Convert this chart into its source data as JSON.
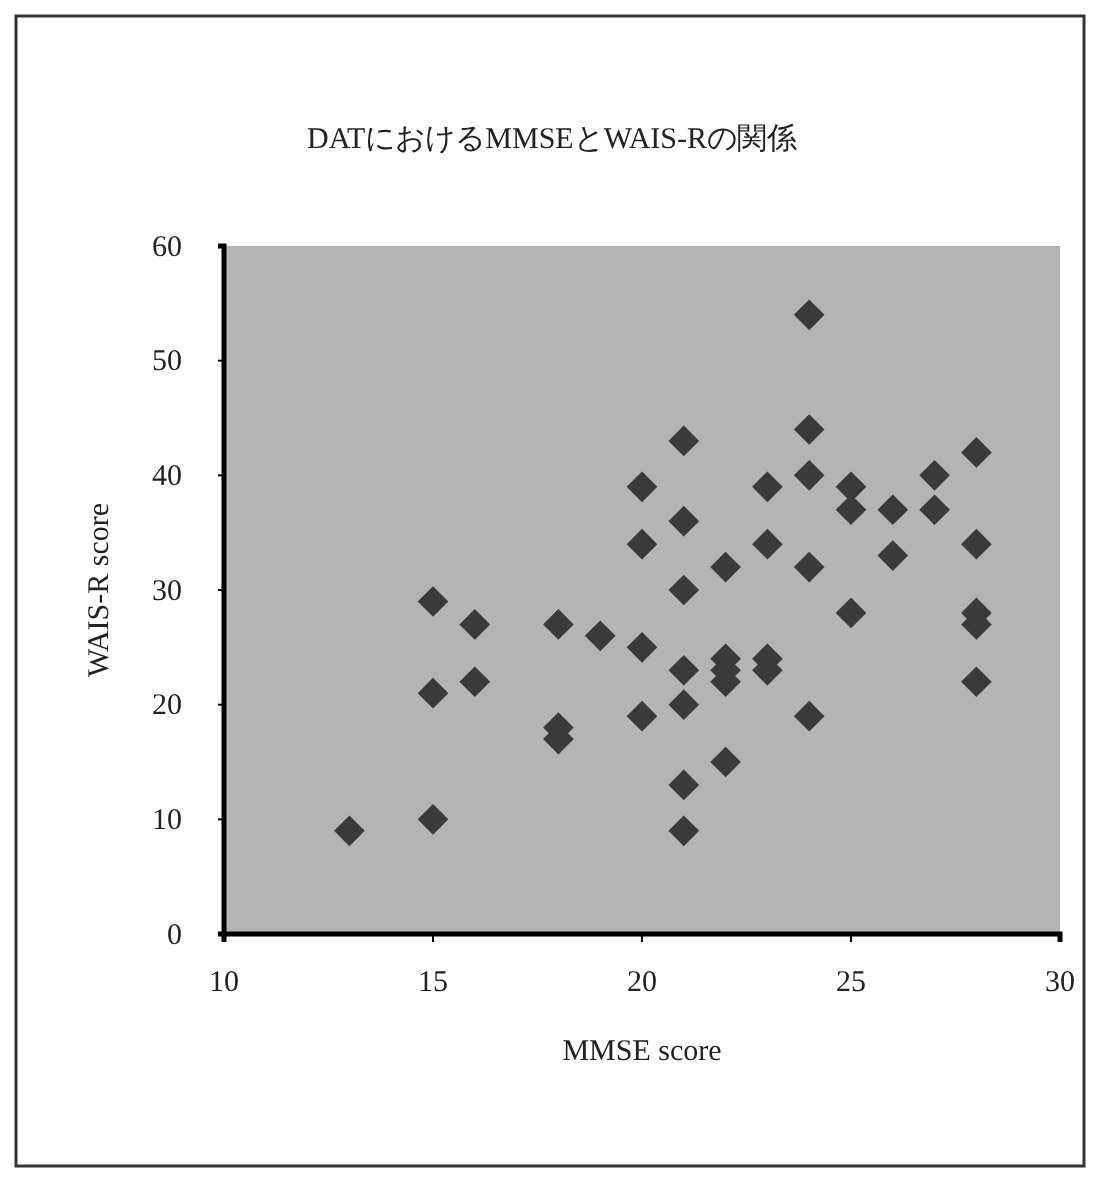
{
  "chart_data": {
    "type": "scatter",
    "title": "DATにおけるMMSEとWAIS-Rの関係",
    "xlabel": "MMSE score",
    "ylabel": "WAIS-R score",
    "xlim": [
      10,
      30
    ],
    "xticks": [
      10,
      15,
      20,
      25,
      30
    ],
    "ylim": [
      0,
      60
    ],
    "yticks": [
      0,
      10,
      20,
      30,
      40,
      50,
      60
    ],
    "grid": false,
    "marker": "diamond",
    "series": [
      {
        "color": "#3a3a3a",
        "x": [
          13,
          15,
          15,
          15,
          16,
          16,
          18,
          18,
          18,
          19,
          20,
          20,
          20,
          20,
          21,
          21,
          21,
          21,
          21,
          21,
          21,
          22,
          22,
          22,
          22,
          22,
          23,
          23,
          23,
          23,
          24,
          24,
          24,
          24,
          24,
          25,
          25,
          25,
          26,
          26,
          27,
          27,
          28,
          28,
          28,
          28,
          28
        ],
        "values": [
          9,
          29,
          21,
          10,
          27,
          22,
          27,
          18,
          17,
          26,
          39,
          34,
          25,
          19,
          43,
          36,
          30,
          23,
          20,
          13,
          9,
          32,
          24,
          23,
          22,
          15,
          39,
          34,
          24,
          23,
          54,
          44,
          40,
          32,
          19,
          39,
          37,
          28,
          37,
          33,
          40,
          37,
          42,
          34,
          28,
          27,
          22
        ]
      }
    ]
  }
}
